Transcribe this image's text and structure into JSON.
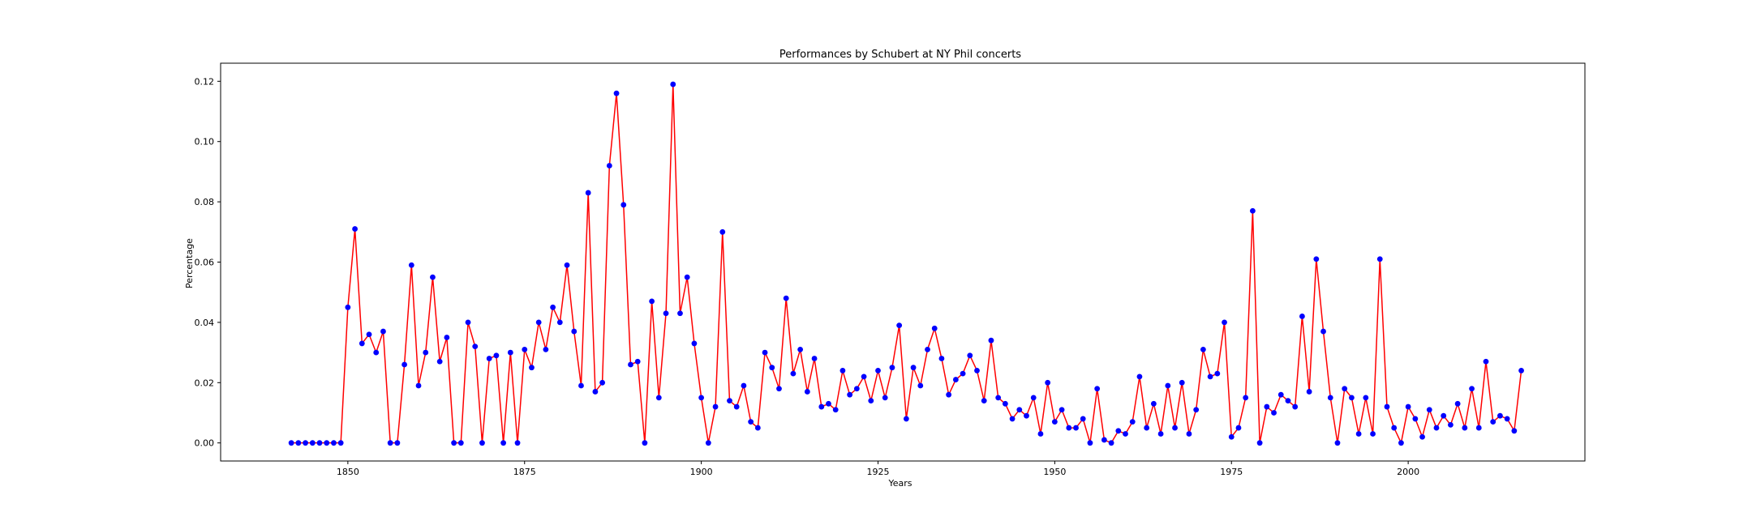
{
  "chart_data": {
    "type": "line",
    "title": "Performances by Schubert at NY Phil concerts",
    "xlabel": "Years",
    "ylabel": "Percentage",
    "xlim": [
      1832,
      2025
    ],
    "ylim": [
      -0.006,
      0.126
    ],
    "xticks": [
      1850,
      1875,
      1900,
      1925,
      1950,
      1975,
      2000
    ],
    "yticks": [
      0.0,
      0.02,
      0.04,
      0.06,
      0.08,
      0.1,
      0.12
    ],
    "ytick_labels": [
      "0.00",
      "0.02",
      "0.04",
      "0.06",
      "0.08",
      "0.10",
      "0.12"
    ],
    "grid": false,
    "line_color": "#ff0000",
    "marker_color": "#0000ff",
    "series": [
      {
        "x": [
          1842,
          1843,
          1844,
          1845,
          1846,
          1847,
          1848,
          1849,
          1850,
          1851,
          1852,
          1853,
          1854,
          1855,
          1856,
          1857,
          1858,
          1859,
          1860,
          1861,
          1862,
          1863,
          1864,
          1865,
          1866,
          1867,
          1868,
          1869,
          1870,
          1871,
          1872,
          1873,
          1874,
          1875,
          1876,
          1877,
          1878,
          1879,
          1880,
          1881,
          1882,
          1883,
          1884,
          1885,
          1886,
          1887,
          1888,
          1889,
          1890,
          1891,
          1892,
          1893,
          1894,
          1895,
          1896,
          1897,
          1898,
          1899,
          1900,
          1901,
          1902,
          1903,
          1904,
          1905,
          1906,
          1907,
          1908,
          1909,
          1910,
          1911,
          1912,
          1913,
          1914,
          1915,
          1916,
          1917,
          1918,
          1919,
          1920,
          1921,
          1922,
          1923,
          1924,
          1925,
          1926,
          1927,
          1928,
          1929,
          1930,
          1931,
          1932,
          1933,
          1934,
          1935,
          1936,
          1937,
          1938,
          1939,
          1940,
          1941,
          1942,
          1943,
          1944,
          1945,
          1946,
          1947,
          1948,
          1949,
          1950,
          1951,
          1952,
          1953,
          1954,
          1955,
          1956,
          1957,
          1958,
          1959,
          1960,
          1961,
          1962,
          1963,
          1964,
          1965,
          1966,
          1967,
          1968,
          1969,
          1970,
          1971,
          1972,
          1973,
          1974,
          1975,
          1976,
          1977,
          1978,
          1979,
          1980,
          1981,
          1982,
          1983,
          1984,
          1985,
          1986,
          1987,
          1988,
          1989,
          1990,
          1991,
          1992,
          1993,
          1994,
          1995,
          1996,
          1997,
          1998,
          1999,
          2000,
          2001,
          2002,
          2003,
          2004,
          2005,
          2006,
          2007,
          2008,
          2009,
          2010,
          2011,
          2012,
          2013,
          2014,
          2015,
          2016
        ],
        "y": [
          0.0,
          0.0,
          0.0,
          0.0,
          0.0,
          0.0,
          0.0,
          0.0,
          0.045,
          0.071,
          0.033,
          0.036,
          0.03,
          0.037,
          0.0,
          0.0,
          0.026,
          0.059,
          0.019,
          0.03,
          0.055,
          0.027,
          0.035,
          0.0,
          0.0,
          0.04,
          0.032,
          0.0,
          0.028,
          0.029,
          0.0,
          0.03,
          0.0,
          0.031,
          0.025,
          0.04,
          0.031,
          0.045,
          0.04,
          0.059,
          0.037,
          0.019,
          0.083,
          0.017,
          0.02,
          0.092,
          0.116,
          0.079,
          0.026,
          0.027,
          0.0,
          0.047,
          0.015,
          0.043,
          0.119,
          0.043,
          0.055,
          0.033,
          0.015,
          0.0,
          0.012,
          0.07,
          0.014,
          0.012,
          0.019,
          0.007,
          0.005,
          0.03,
          0.025,
          0.018,
          0.048,
          0.023,
          0.031,
          0.017,
          0.028,
          0.012,
          0.013,
          0.011,
          0.024,
          0.016,
          0.018,
          0.022,
          0.014,
          0.024,
          0.015,
          0.025,
          0.039,
          0.008,
          0.025,
          0.019,
          0.031,
          0.038,
          0.028,
          0.016,
          0.021,
          0.023,
          0.029,
          0.024,
          0.014,
          0.034,
          0.015,
          0.013,
          0.008,
          0.011,
          0.009,
          0.015,
          0.003,
          0.02,
          0.007,
          0.011,
          0.005,
          0.005,
          0.008,
          0.0,
          0.018,
          0.001,
          0.0,
          0.004,
          0.003,
          0.007,
          0.022,
          0.005,
          0.013,
          0.003,
          0.019,
          0.005,
          0.02,
          0.003,
          0.011,
          0.031,
          0.022,
          0.023,
          0.04,
          0.002,
          0.005,
          0.015,
          0.077,
          0.0,
          0.012,
          0.01,
          0.016,
          0.014,
          0.012,
          0.042,
          0.017,
          0.061,
          0.037,
          0.015,
          0.0,
          0.018,
          0.015,
          0.003,
          0.015,
          0.003,
          0.061,
          0.012,
          0.005,
          0.0,
          0.012,
          0.008,
          0.002,
          0.011,
          0.005,
          0.009,
          0.006,
          0.013,
          0.005,
          0.018,
          0.005,
          0.027,
          0.007,
          0.009,
          0.008,
          0.004,
          0.024
        ]
      }
    ]
  }
}
